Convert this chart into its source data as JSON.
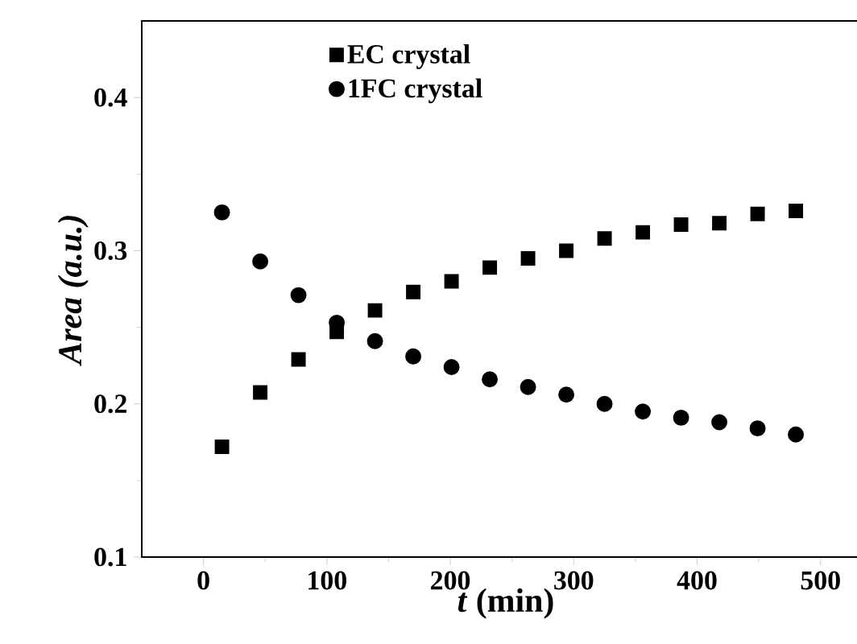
{
  "chart_data": {
    "type": "scatter",
    "xlabel": "*t* (min)",
    "ylabel": "Area (a.u.)",
    "xlim": [
      -50,
      540
    ],
    "ylim": [
      0.1,
      0.45
    ],
    "xticks": [
      0,
      100,
      200,
      300,
      400,
      500
    ],
    "yticks": [
      0.1,
      0.2,
      0.3,
      0.4
    ],
    "grid": false,
    "legend": "top",
    "x": [
      15,
      46,
      77,
      108,
      139,
      170,
      201,
      232,
      263,
      294,
      325,
      356,
      387,
      418,
      449,
      480
    ],
    "series": [
      {
        "name": "EC crystal",
        "color": "#000000",
        "marker": "square",
        "values": [
          0.172,
          0.2075,
          0.229,
          0.247,
          0.261,
          0.273,
          0.28,
          0.289,
          0.295,
          0.3,
          0.308,
          0.312,
          0.317,
          0.318,
          0.324,
          0.326
        ]
      },
      {
        "name": "1FC crystal",
        "color": "#000000",
        "marker": "circle",
        "values": [
          0.325,
          0.293,
          0.271,
          0.253,
          0.241,
          0.231,
          0.224,
          0.216,
          0.211,
          0.206,
          0.2,
          0.195,
          0.191,
          0.188,
          0.184,
          0.18
        ]
      }
    ]
  }
}
